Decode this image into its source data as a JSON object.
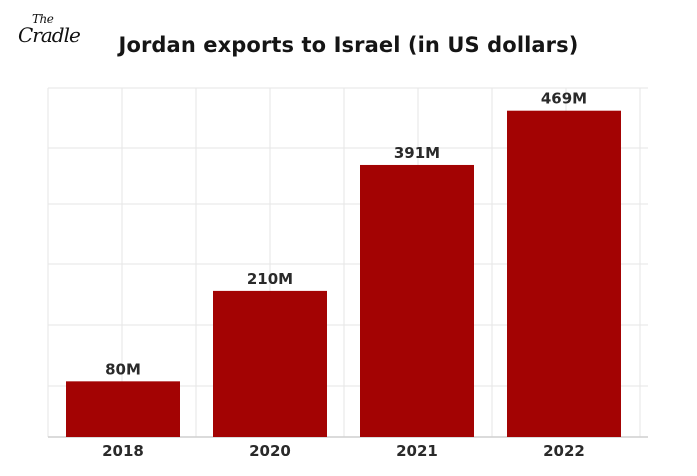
{
  "logo": {
    "the": "The",
    "word": "Cradle"
  },
  "title": "Jordan exports to Israel (in US dollars)",
  "colors": {
    "bar": "#a30303",
    "grid": "#e6e6e6",
    "axis": "#cfcfcf",
    "text": "#2a2a2a"
  },
  "chart_data": {
    "type": "bar",
    "title": "Jordan exports to Israel (in US dollars)",
    "categories": [
      "2018",
      "2020",
      "2021",
      "2022"
    ],
    "values": [
      80,
      210,
      391,
      469
    ],
    "data_labels": [
      "80M",
      "210M",
      "391M",
      "469M"
    ],
    "unit": "million US dollars",
    "xlabel": "",
    "ylabel": "",
    "ylim": [
      0,
      470
    ],
    "grid": true,
    "legend": "none"
  }
}
